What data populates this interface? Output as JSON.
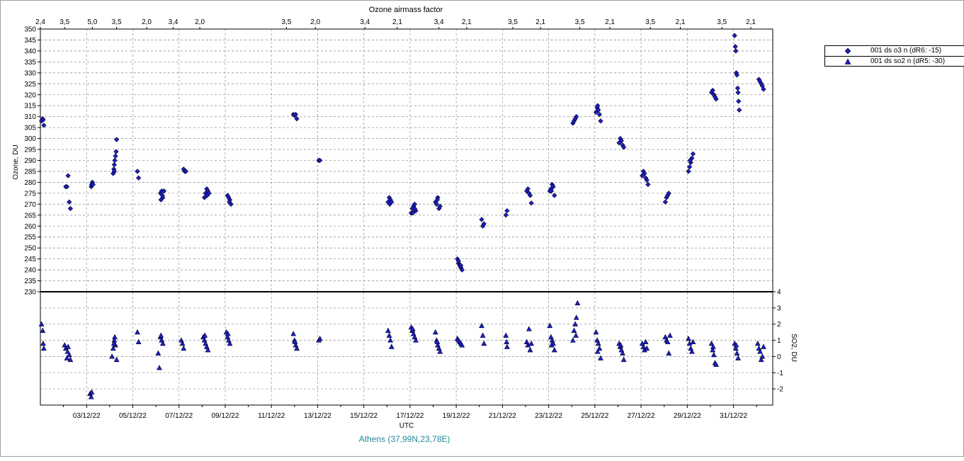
{
  "chart_data": {
    "type": "scatter",
    "title": "Ozone airmass factor",
    "xlabel": "UTC",
    "station": "Athens (37,99N,23,78E)",
    "xlim": [
      1.0,
      32.7
    ],
    "date_ticks": [
      {
        "day": 3,
        "label": "03/12/22"
      },
      {
        "day": 5,
        "label": "05/12/22"
      },
      {
        "day": 7,
        "label": "07/12/22"
      },
      {
        "day": 9,
        "label": "09/12/22"
      },
      {
        "day": 11,
        "label": "11/12/22"
      },
      {
        "day": 13,
        "label": "13/12/22"
      },
      {
        "day": 15,
        "label": "15/12/22"
      },
      {
        "day": 17,
        "label": "17/12/22"
      },
      {
        "day": 19,
        "label": "19/12/22"
      },
      {
        "day": 21,
        "label": "21/12/22"
      },
      {
        "day": 23,
        "label": "23/12/22"
      },
      {
        "day": 25,
        "label": "25/12/22"
      },
      {
        "day": 27,
        "label": "27/12/22"
      },
      {
        "day": 29,
        "label": "29/12/22"
      },
      {
        "day": 31,
        "label": "31/12/22"
      }
    ],
    "airmass_ticks": [
      {
        "day": 1.0,
        "label": "2,4"
      },
      {
        "day": 2.05,
        "label": "3,5"
      },
      {
        "day": 3.25,
        "label": "5,0"
      },
      {
        "day": 4.3,
        "label": "3,5"
      },
      {
        "day": 5.6,
        "label": "2,0"
      },
      {
        "day": 6.75,
        "label": "3,4"
      },
      {
        "day": 7.9,
        "label": "2,0"
      },
      {
        "day": 11.65,
        "label": "3,5"
      },
      {
        "day": 12.9,
        "label": "2,0"
      },
      {
        "day": 15.05,
        "label": "3,4"
      },
      {
        "day": 16.45,
        "label": "2,1"
      },
      {
        "day": 18.25,
        "label": "3,4"
      },
      {
        "day": 19.45,
        "label": "2,1"
      },
      {
        "day": 21.45,
        "label": "3,5"
      },
      {
        "day": 22.65,
        "label": "2,1"
      },
      {
        "day": 24.35,
        "label": "3,5"
      },
      {
        "day": 25.65,
        "label": "2,1"
      },
      {
        "day": 27.4,
        "label": "3,5"
      },
      {
        "day": 28.7,
        "label": "2,1"
      },
      {
        "day": 30.5,
        "label": "3,5"
      },
      {
        "day": 31.75,
        "label": "2,1"
      }
    ],
    "ozone_axis": {
      "label": "Ozone, DU",
      "range": [
        230,
        350
      ],
      "step": 5
    },
    "so2_axis": {
      "label": "SO2, DU",
      "range": [
        -3,
        4
      ],
      "ticks": [
        -2,
        -1,
        0,
        1,
        2,
        3,
        4
      ]
    },
    "grid": true,
    "legend_position": "right",
    "series": [
      {
        "name": "001 ds o3  n (dR6: -15)",
        "marker": "diamond",
        "color": "#1c20c8",
        "points": [
          [
            1.05,
            308
          ],
          [
            1.1,
            309
          ],
          [
            1.15,
            306
          ],
          [
            1.12,
            308.5
          ],
          [
            2.1,
            278
          ],
          [
            2.15,
            278
          ],
          [
            2.2,
            283
          ],
          [
            2.25,
            271
          ],
          [
            2.3,
            268
          ],
          [
            3.2,
            278
          ],
          [
            3.25,
            280
          ],
          [
            3.22,
            279
          ],
          [
            3.28,
            279
          ],
          [
            4.15,
            284
          ],
          [
            4.18,
            286
          ],
          [
            4.2,
            288
          ],
          [
            4.22,
            290
          ],
          [
            4.25,
            292
          ],
          [
            4.28,
            294
          ],
          [
            4.3,
            299.5
          ],
          [
            4.2,
            285
          ],
          [
            5.2,
            285
          ],
          [
            5.25,
            282
          ],
          [
            6.2,
            275
          ],
          [
            6.25,
            276
          ],
          [
            6.3,
            273
          ],
          [
            6.22,
            272
          ],
          [
            6.35,
            276
          ],
          [
            6.28,
            274
          ],
          [
            7.2,
            286
          ],
          [
            7.25,
            285
          ],
          [
            7.3,
            285
          ],
          [
            8.1,
            273
          ],
          [
            8.15,
            275
          ],
          [
            8.2,
            277
          ],
          [
            8.25,
            276
          ],
          [
            8.3,
            275
          ],
          [
            8.22,
            274
          ],
          [
            9.1,
            274
          ],
          [
            9.15,
            273
          ],
          [
            9.2,
            272
          ],
          [
            9.25,
            270
          ],
          [
            9.18,
            271
          ],
          [
            11.95,
            311
          ],
          [
            12.0,
            310.5
          ],
          [
            12.05,
            311
          ],
          [
            12.1,
            309
          ],
          [
            13.05,
            290
          ],
          [
            13.1,
            290
          ],
          [
            16.05,
            271
          ],
          [
            16.1,
            273
          ],
          [
            16.15,
            272
          ],
          [
            16.2,
            271
          ],
          [
            16.12,
            270
          ],
          [
            17.05,
            266
          ],
          [
            17.1,
            268
          ],
          [
            17.15,
            269
          ],
          [
            17.2,
            270
          ],
          [
            17.25,
            267
          ],
          [
            17.12,
            266
          ],
          [
            17.2,
            268
          ],
          [
            18.1,
            271
          ],
          [
            18.15,
            270
          ],
          [
            18.2,
            273
          ],
          [
            18.25,
            268
          ],
          [
            18.3,
            269
          ],
          [
            18.18,
            272
          ],
          [
            19.05,
            245
          ],
          [
            19.1,
            243
          ],
          [
            19.15,
            242
          ],
          [
            19.2,
            241
          ],
          [
            19.25,
            240
          ],
          [
            19.1,
            244
          ],
          [
            19.2,
            242
          ],
          [
            20.1,
            263
          ],
          [
            20.15,
            260
          ],
          [
            20.2,
            261
          ],
          [
            21.15,
            265
          ],
          [
            21.2,
            267
          ],
          [
            22.05,
            276
          ],
          [
            22.1,
            277
          ],
          [
            22.15,
            275
          ],
          [
            22.2,
            274
          ],
          [
            22.25,
            270.5
          ],
          [
            23.05,
            276
          ],
          [
            23.1,
            277
          ],
          [
            23.15,
            279
          ],
          [
            23.2,
            278
          ],
          [
            23.25,
            274
          ],
          [
            23.12,
            276
          ],
          [
            24.05,
            307
          ],
          [
            24.1,
            308
          ],
          [
            24.15,
            309
          ],
          [
            24.2,
            310
          ],
          [
            25.05,
            312
          ],
          [
            25.1,
            314
          ],
          [
            25.15,
            313
          ],
          [
            25.2,
            311
          ],
          [
            25.25,
            308
          ],
          [
            25.12,
            315
          ],
          [
            26.05,
            298
          ],
          [
            26.1,
            300
          ],
          [
            26.15,
            299
          ],
          [
            26.2,
            297
          ],
          [
            26.25,
            296
          ],
          [
            27.05,
            283
          ],
          [
            27.1,
            285
          ],
          [
            27.15,
            284
          ],
          [
            27.2,
            282
          ],
          [
            27.25,
            281
          ],
          [
            27.3,
            279
          ],
          [
            28.05,
            271
          ],
          [
            28.1,
            273
          ],
          [
            28.15,
            274
          ],
          [
            28.2,
            275
          ],
          [
            29.05,
            285
          ],
          [
            29.1,
            287
          ],
          [
            29.15,
            289
          ],
          [
            29.2,
            291
          ],
          [
            29.25,
            293
          ],
          [
            29.12,
            290
          ],
          [
            30.05,
            321
          ],
          [
            30.1,
            322
          ],
          [
            30.15,
            320
          ],
          [
            30.2,
            319
          ],
          [
            30.25,
            318
          ],
          [
            31.05,
            347
          ],
          [
            31.08,
            342
          ],
          [
            31.1,
            340
          ],
          [
            31.12,
            330
          ],
          [
            31.15,
            329
          ],
          [
            31.18,
            323
          ],
          [
            31.2,
            321
          ],
          [
            31.22,
            317
          ],
          [
            31.25,
            313
          ],
          [
            32.1,
            327
          ],
          [
            32.15,
            326
          ],
          [
            32.2,
            325
          ],
          [
            32.25,
            324
          ],
          [
            32.3,
            322.5
          ]
        ]
      },
      {
        "name": "001 ds so2 n (dR5: -30)",
        "marker": "triangle",
        "color": "#1c20c8",
        "points": [
          [
            1.05,
            2.0
          ],
          [
            1.1,
            1.6
          ],
          [
            1.12,
            0.8
          ],
          [
            1.15,
            0.5
          ],
          [
            2.05,
            0.7
          ],
          [
            2.1,
            0.5
          ],
          [
            2.15,
            -0.1
          ],
          [
            2.2,
            0.6
          ],
          [
            2.25,
            0.1
          ],
          [
            2.3,
            -0.2
          ],
          [
            2.18,
            0.3
          ],
          [
            3.15,
            -2.3
          ],
          [
            3.2,
            -2.5
          ],
          [
            3.22,
            -2.2
          ],
          [
            4.1,
            0.0
          ],
          [
            4.15,
            0.5
          ],
          [
            4.2,
            1.0
          ],
          [
            4.22,
            1.2
          ],
          [
            4.25,
            0.7
          ],
          [
            4.3,
            -0.2
          ],
          [
            4.18,
            0.8
          ],
          [
            5.2,
            1.5
          ],
          [
            5.25,
            0.9
          ],
          [
            6.1,
            0.2
          ],
          [
            6.15,
            -0.7
          ],
          [
            6.2,
            1.2
          ],
          [
            6.25,
            1.0
          ],
          [
            6.3,
            0.8
          ],
          [
            6.22,
            1.3
          ],
          [
            7.1,
            1.0
          ],
          [
            7.15,
            0.8
          ],
          [
            7.2,
            0.5
          ],
          [
            8.05,
            1.2
          ],
          [
            8.1,
            1.0
          ],
          [
            8.15,
            0.8
          ],
          [
            8.2,
            0.6
          ],
          [
            8.25,
            0.4
          ],
          [
            8.12,
            1.3
          ],
          [
            9.05,
            1.5
          ],
          [
            9.1,
            1.2
          ],
          [
            9.15,
            1.0
          ],
          [
            9.2,
            0.8
          ],
          [
            9.12,
            1.4
          ],
          [
            11.95,
            1.4
          ],
          [
            12.0,
            1.0
          ],
          [
            12.05,
            0.7
          ],
          [
            12.1,
            0.5
          ],
          [
            12.02,
            0.9
          ],
          [
            13.05,
            1.0
          ],
          [
            13.1,
            1.1
          ],
          [
            16.05,
            1.6
          ],
          [
            16.1,
            1.3
          ],
          [
            16.15,
            1.0
          ],
          [
            16.2,
            0.6
          ],
          [
            17.05,
            1.8
          ],
          [
            17.1,
            1.6
          ],
          [
            17.15,
            1.4
          ],
          [
            17.2,
            1.2
          ],
          [
            17.25,
            1.0
          ],
          [
            17.12,
            1.7
          ],
          [
            18.1,
            1.5
          ],
          [
            18.15,
            1.0
          ],
          [
            18.2,
            0.7
          ],
          [
            18.25,
            0.5
          ],
          [
            18.3,
            0.3
          ],
          [
            18.18,
            0.9
          ],
          [
            19.05,
            1.1
          ],
          [
            19.1,
            1.0
          ],
          [
            19.15,
            0.9
          ],
          [
            19.2,
            0.8
          ],
          [
            19.25,
            0.7
          ],
          [
            20.1,
            1.9
          ],
          [
            20.15,
            1.3
          ],
          [
            20.2,
            0.8
          ],
          [
            21.15,
            1.3
          ],
          [
            21.2,
            0.6
          ],
          [
            21.18,
            0.9
          ],
          [
            22.05,
            0.9
          ],
          [
            22.1,
            0.7
          ],
          [
            22.15,
            1.7
          ],
          [
            22.2,
            0.4
          ],
          [
            22.25,
            0.8
          ],
          [
            23.05,
            1.9
          ],
          [
            23.1,
            1.2
          ],
          [
            23.15,
            1.0
          ],
          [
            23.2,
            0.8
          ],
          [
            23.25,
            0.4
          ],
          [
            23.12,
            0.7
          ],
          [
            24.05,
            1.0
          ],
          [
            24.1,
            1.6
          ],
          [
            24.15,
            2.0
          ],
          [
            24.2,
            2.4
          ],
          [
            24.25,
            3.3
          ],
          [
            24.18,
            1.3
          ],
          [
            25.05,
            1.5
          ],
          [
            25.1,
            1.0
          ],
          [
            25.15,
            0.8
          ],
          [
            25.2,
            0.5
          ],
          [
            25.25,
            -0.1
          ],
          [
            25.12,
            0.3
          ],
          [
            26.05,
            0.8
          ],
          [
            26.1,
            0.6
          ],
          [
            26.15,
            0.4
          ],
          [
            26.2,
            0.2
          ],
          [
            26.25,
            -0.2
          ],
          [
            26.12,
            0.7
          ],
          [
            27.05,
            0.8
          ],
          [
            27.1,
            0.6
          ],
          [
            27.15,
            0.4
          ],
          [
            27.2,
            0.9
          ],
          [
            27.25,
            0.5
          ],
          [
            28.05,
            1.2
          ],
          [
            28.1,
            1.0
          ],
          [
            28.15,
            0.9
          ],
          [
            28.2,
            0.2
          ],
          [
            28.25,
            1.3
          ],
          [
            29.05,
            1.1
          ],
          [
            29.1,
            0.8
          ],
          [
            29.15,
            0.5
          ],
          [
            29.2,
            0.3
          ],
          [
            29.25,
            0.9
          ],
          [
            30.05,
            0.8
          ],
          [
            30.1,
            0.4
          ],
          [
            30.15,
            0.1
          ],
          [
            30.2,
            -0.4
          ],
          [
            30.25,
            -0.5
          ],
          [
            30.12,
            0.6
          ],
          [
            31.05,
            0.8
          ],
          [
            31.1,
            0.5
          ],
          [
            31.15,
            0.2
          ],
          [
            31.2,
            -0.1
          ],
          [
            31.12,
            0.7
          ],
          [
            32.05,
            0.8
          ],
          [
            32.1,
            0.5
          ],
          [
            32.15,
            0.3
          ],
          [
            32.2,
            -0.2
          ],
          [
            32.25,
            0.0
          ],
          [
            32.3,
            0.6
          ]
        ]
      }
    ]
  }
}
